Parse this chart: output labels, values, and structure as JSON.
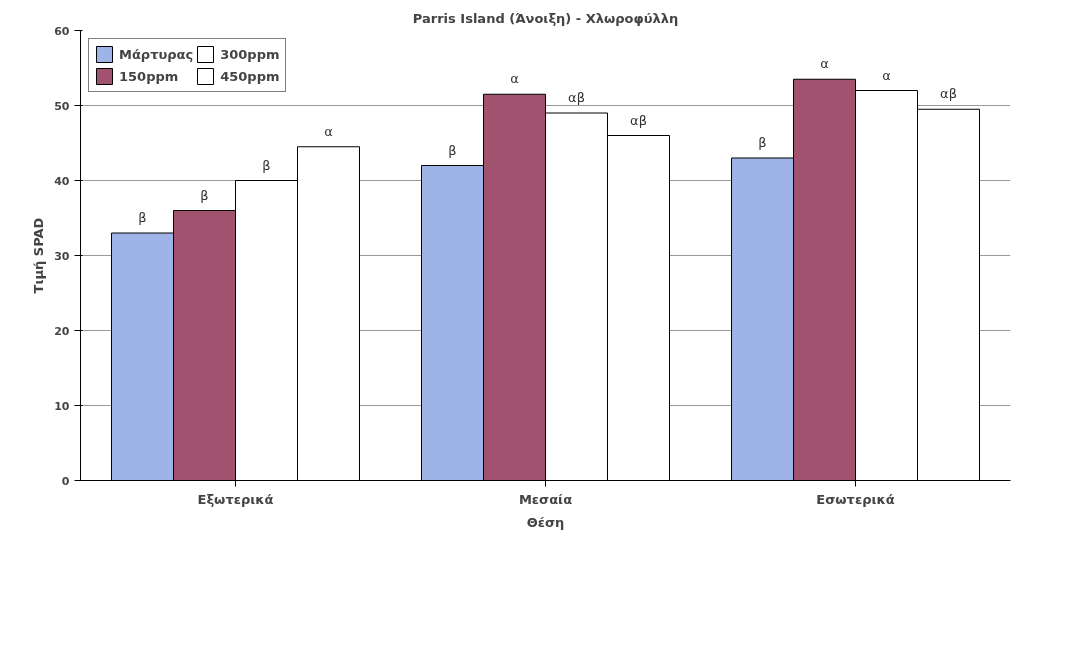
{
  "chart_data": {
    "type": "bar",
    "title": "Parris Island (Άνοιξη) - Χλωροφύλλη",
    "xlabel": "Θέση",
    "ylabel": "Τιμή SPAD",
    "categories": [
      "Εξωτερικά",
      "Μεσαία",
      "Εσωτερικά"
    ],
    "series": [
      {
        "name": "Μάρτυρας",
        "color": "#9eb3e6",
        "values": [
          33,
          42,
          43
        ],
        "value_labels": [
          "β",
          "β",
          "β"
        ]
      },
      {
        "name": "150ppm",
        "color": "#a0526e",
        "values": [
          36,
          51.5,
          53.5
        ],
        "value_labels": [
          "β",
          "α",
          "α"
        ]
      },
      {
        "name": "300ppm",
        "color": "#ffffff",
        "values": [
          40,
          49,
          52
        ],
        "value_labels": [
          "β",
          "αβ",
          "α"
        ]
      },
      {
        "name": "450ppm",
        "color": "#ffffff",
        "values": [
          44.5,
          46,
          49.5
        ],
        "value_labels": [
          "α",
          "αβ",
          "αβ"
        ]
      }
    ],
    "ylim": [
      0,
      60
    ],
    "yticks": [
      0,
      10,
      20,
      30,
      40,
      50,
      60
    ],
    "grid": "y",
    "legend": "top left"
  }
}
